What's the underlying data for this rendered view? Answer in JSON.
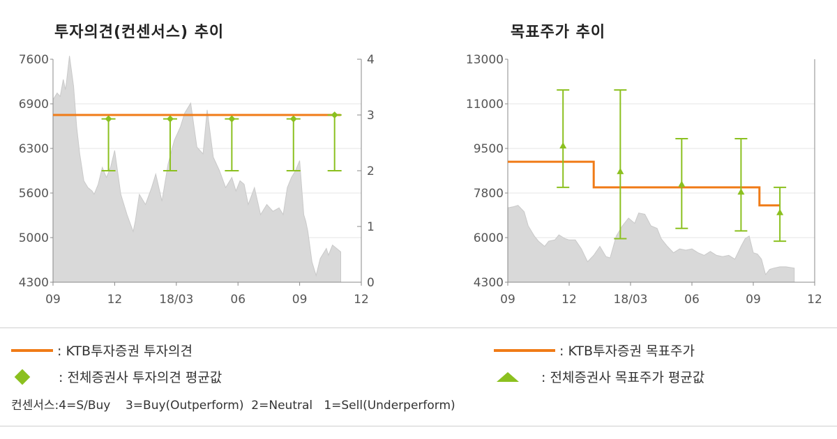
{
  "titles": {
    "left": "투자의견(컨센서스) 추이",
    "right": "목표주가 추이"
  },
  "colors": {
    "broker_line": "#f07b17",
    "consensus": "#8bc01f",
    "price_area": "#d9d9d9",
    "grid": "#e6e6e6",
    "axis": "#888888"
  },
  "chart_data": [
    {
      "type": "area",
      "title": "투자의견(컨센서스) 추이",
      "x_tick_labels": [
        "09",
        "12",
        "18/03",
        "06",
        "09",
        "12"
      ],
      "y_left_ticks": [
        "7600",
        "6900",
        "6300",
        "5600",
        "5000",
        "4300"
      ],
      "y_left_lim": [
        4300,
        7600
      ],
      "y_right_ticks": [
        "4",
        "3",
        "2",
        "1",
        "0"
      ],
      "y_right_lim": [
        0,
        4
      ],
      "grid": true,
      "x_domain_months": [
        0,
        15
      ],
      "price_area": {
        "x": [
          0,
          0.2,
          0.35,
          0.5,
          0.6,
          0.65,
          0.8,
          1.0,
          1.15,
          1.3,
          1.4,
          1.5,
          1.7,
          1.9,
          2.0,
          2.2,
          2.4,
          2.6,
          2.8,
          3.0,
          3.3,
          3.6,
          3.9,
          4.0,
          4.2,
          4.5,
          4.8,
          5.0,
          5.3,
          5.6,
          5.9,
          6.2,
          6.4,
          6.7,
          7.0,
          7.3,
          7.5,
          7.8,
          8.1,
          8.4,
          8.7,
          8.9,
          9.1,
          9.3,
          9.5,
          9.8,
          10.1,
          10.4,
          10.7,
          11.0,
          11.2,
          11.4,
          11.6,
          11.8,
          12.0,
          12.2,
          12.3,
          12.4,
          12.6,
          12.8,
          13.0,
          13.2,
          13.3,
          13.4,
          13.6,
          13.8,
          14.0
        ],
        "y": [
          7000,
          7100,
          7050,
          7300,
          7150,
          7250,
          7650,
          7200,
          6600,
          6200,
          6000,
          5800,
          5700,
          5650,
          5600,
          5750,
          6000,
          5850,
          6000,
          6250,
          5600,
          5300,
          5050,
          5200,
          5600,
          5450,
          5700,
          5900,
          5500,
          6050,
          6400,
          6600,
          6800,
          6950,
          6300,
          6200,
          6850,
          6150,
          5950,
          5700,
          5850,
          5650,
          5800,
          5750,
          5450,
          5700,
          5300,
          5450,
          5350,
          5400,
          5300,
          5700,
          5850,
          5950,
          6100,
          5300,
          5200,
          5050,
          4600,
          4400,
          4650,
          4750,
          4800,
          4700,
          4850,
          4800,
          4750
        ]
      },
      "broker_opinion": {
        "name": "KTB투자증권 투자의견",
        "x": [
          0,
          14
        ],
        "y": [
          3,
          3
        ]
      },
      "consensus_points": [
        {
          "x": 2.7,
          "avg": 2.93,
          "low": 2,
          "high": 2.93
        },
        {
          "x": 5.7,
          "avg": 2.93,
          "low": 2,
          "high": 2.93
        },
        {
          "x": 8.7,
          "avg": 2.93,
          "low": 2,
          "high": 2.93
        },
        {
          "x": 11.7,
          "avg": 2.93,
          "low": 2,
          "high": 2.93
        },
        {
          "x": 13.7,
          "avg": 3,
          "low": 2,
          "high": 3
        }
      ]
    },
    {
      "type": "area",
      "title": "목표주가 추이",
      "x_tick_labels": [
        "09",
        "12",
        "18/03",
        "06",
        "09",
        "12"
      ],
      "y_ticks": [
        "13000",
        "11000",
        "9500",
        "7800",
        "6000",
        "4300"
      ],
      "y_lim": [
        4300,
        13000
      ],
      "grid": true,
      "x_domain_months": [
        0,
        15
      ],
      "price_area": {
        "x": [
          0,
          0.3,
          0.5,
          0.8,
          1.0,
          1.3,
          1.5,
          1.8,
          2.0,
          2.3,
          2.5,
          2.8,
          3.0,
          3.3,
          3.6,
          3.9,
          4.2,
          4.5,
          4.8,
          5.0,
          5.3,
          5.6,
          5.9,
          6.2,
          6.4,
          6.7,
          7.0,
          7.3,
          7.5,
          7.8,
          8.1,
          8.4,
          8.7,
          9.0,
          9.3,
          9.6,
          9.9,
          10.2,
          10.5,
          10.8,
          11.1,
          11.4,
          11.6,
          11.8,
          12.0,
          12.2,
          12.4,
          12.6,
          12.8,
          13.0,
          13.3,
          13.6,
          14.0
        ],
        "y": [
          7200,
          7250,
          7300,
          7050,
          6500,
          6100,
          5900,
          5700,
          5900,
          5950,
          6150,
          6000,
          5950,
          5950,
          5600,
          5100,
          5350,
          5700,
          5300,
          5250,
          6100,
          6500,
          6800,
          6600,
          7000,
          6950,
          6500,
          6400,
          6000,
          5700,
          5450,
          5600,
          5550,
          5600,
          5450,
          5350,
          5500,
          5350,
          5300,
          5350,
          5200,
          5700,
          6000,
          6100,
          5450,
          5400,
          5200,
          4600,
          4800,
          4850,
          4900,
          4900,
          4850
        ]
      },
      "broker_target": {
        "name": "KTB투자증권 목표주가",
        "x": [
          0,
          4.2,
          4.2,
          12.3,
          12.3,
          13.3
        ],
        "y": [
          9000,
          9000,
          8000,
          8000,
          7300,
          7300
        ]
      },
      "consensus_points": [
        {
          "x": 2.7,
          "avg": 9600,
          "low": 8000,
          "high": 11800
        },
        {
          "x": 5.5,
          "avg": 8600,
          "low": 6000,
          "high": 11800
        },
        {
          "x": 8.5,
          "avg": 8100,
          "low": 6400,
          "high": 9900
        },
        {
          "x": 11.4,
          "avg": 7800,
          "low": 6300,
          "high": 9900
        },
        {
          "x": 13.3,
          "avg": 7000,
          "low": 5900,
          "high": 8000
        }
      ]
    }
  ],
  "legend": {
    "broker_opinion": ": KTB투자증권 투자의견",
    "consensus_opinion": ": 전체증권사 투자의견 평균값",
    "broker_target": ": KTB투자증권 목표주가",
    "consensus_target": ": 전체증권사 목표주가 평균값",
    "consensus_note": "컨센서스:4=S/Buy    3=Buy(Outperform)  2=Neutral   1=Sell(Underperform)"
  }
}
